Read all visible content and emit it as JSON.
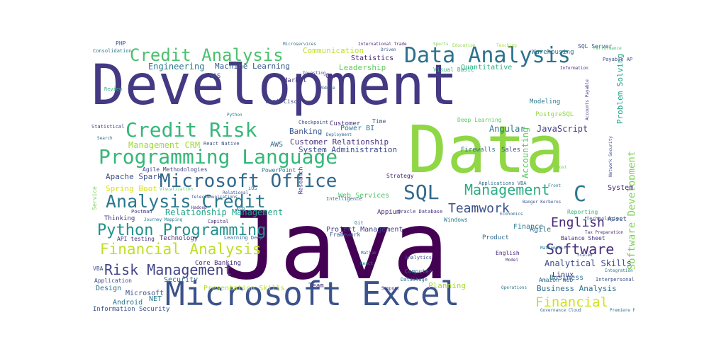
{
  "words": [
    {
      "text": "Development",
      "color": "#443983"
    },
    {
      "text": "Java",
      "color": "#440154"
    },
    {
      "text": "Data",
      "color": "#8fd744"
    },
    {
      "text": "Microsoft Excel",
      "color": "#3b528b"
    },
    {
      "text": "Programming Language",
      "color": "#35b779"
    },
    {
      "text": "Microsoft Office",
      "color": "#31688e"
    },
    {
      "text": "Data Analysis",
      "color": "#2c728e"
    },
    {
      "text": "Credit Risk",
      "color": "#35b779"
    },
    {
      "text": "Credit Analysis",
      "color": "#4ac16d"
    },
    {
      "text": "Analysis Credit",
      "color": "#2a788e"
    },
    {
      "text": "Python Programming",
      "color": "#21918c"
    },
    {
      "text": "Financial Analysis",
      "color": "#bddf26"
    },
    {
      "text": "Risk Management",
      "color": "#414487"
    },
    {
      "text": "SQL",
      "color": "#31688e"
    },
    {
      "text": "C",
      "color": "#2a788e"
    },
    {
      "text": "Management",
      "color": "#27ad81"
    },
    {
      "text": "Teamwork",
      "color": "#3b528b"
    },
    {
      "text": "English",
      "color": "#482878"
    },
    {
      "text": "Software",
      "color": "#472d7b"
    },
    {
      "text": "Financial",
      "color": "#d0e11c"
    },
    {
      "text": "Software Development",
      "color": "#7ad151"
    },
    {
      "text": "Management CRM",
      "color": "#a0da39"
    },
    {
      "text": "Relationship Management",
      "color": "#20a486"
    },
    {
      "text": "Customer Relationship",
      "color": "#46327e"
    },
    {
      "text": "JavaScript",
      "color": "#433e85"
    },
    {
      "text": "Angular",
      "color": "#2c728e"
    },
    {
      "text": "Accounting",
      "color": "#5ec962"
    },
    {
      "text": "Analytical Skills",
      "color": "#3e4989"
    },
    {
      "text": "Business Analysis",
      "color": "#2e6e8e"
    },
    {
      "text": "Engineering",
      "color": "#2a788e"
    },
    {
      "text": "Machine Learning",
      "color": "#365c8d"
    },
    {
      "text": "Communication",
      "color": "#bddf26"
    },
    {
      "text": "Leadership",
      "color": "#63cb5f"
    },
    {
      "text": "Statistics",
      "color": "#482173"
    },
    {
      "text": "Quantitative",
      "color": "#27ad81"
    },
    {
      "text": "Problem Solving",
      "color": "#1fa188"
    },
    {
      "text": "Banking",
      "color": "#39568c"
    },
    {
      "text": "Power BI",
      "color": "#2a788e"
    },
    {
      "text": "System Administration",
      "color": "#3e4989"
    },
    {
      "text": "Apache Spark",
      "color": "#3b528b"
    },
    {
      "text": "Spring Boot",
      "color": "#d8e219"
    },
    {
      "text": "AWS",
      "color": "#31688e"
    },
    {
      "text": "System",
      "color": "#482475"
    },
    {
      "text": "Web Services",
      "color": "#52c569"
    },
    {
      "text": "Project Management",
      "color": "#433e85"
    },
    {
      "text": "Presentation Skills",
      "color": "#b5de2b"
    },
    {
      "text": "Android",
      "color": "#2a788e"
    },
    {
      "text": "Design",
      "color": "#2c728e"
    },
    {
      "text": "Information Security",
      "color": "#3b528b"
    },
    {
      "text": "Security",
      "color": "#31688e"
    },
    {
      "text": "Planning",
      "color": "#a5db36"
    },
    {
      "text": "Core Banking",
      "color": "#472c7a"
    },
    {
      "text": "Technology",
      "color": "#482878"
    },
    {
      "text": "Firewalls",
      "color": "#2e6e8e"
    },
    {
      "text": "Sales",
      "color": "#3b528b"
    },
    {
      "text": "Linux",
      "color": "#46327e"
    },
    {
      "text": "Business",
      "color": "#2d708e"
    },
    {
      "text": "Agile",
      "color": "#31688e"
    },
    {
      "text": "Finance",
      "color": "#2a788e"
    },
    {
      "text": "Asset",
      "color": "#414487"
    },
    {
      "text": "Thinking",
      "color": "#46337f"
    },
    {
      "text": "Microsoft",
      "color": "#3b528b"
    },
    {
      "text": "NET",
      "color": "#2a788e"
    },
    {
      "text": "SAS",
      "color": "#365c8d"
    },
    {
      "text": "Market",
      "color": "#46327e"
    },
    {
      "text": "Core",
      "color": "#482878"
    },
    {
      "text": "Test",
      "color": "#39568c"
    },
    {
      "text": "Cisco",
      "color": "#3e4989"
    },
    {
      "text": "Customer",
      "color": "#46327e"
    },
    {
      "text": "Time",
      "color": "#3b528b"
    },
    {
      "text": "Modeling",
      "color": "#2a788e"
    },
    {
      "text": "Deep Learning",
      "color": "#5ec962"
    },
    {
      "text": "PostgreSQL",
      "color": "#8fd744"
    },
    {
      "text": "Warehousing",
      "color": "#2c728e"
    },
    {
      "text": "SQL Server",
      "color": "#3b528b"
    },
    {
      "text": "Visual Basic",
      "color": "#35b779"
    },
    {
      "text": "Agile Methodologies",
      "color": "#414487"
    },
    {
      "text": "PowerPoint",
      "color": "#2a788e"
    },
    {
      "text": "Strategy",
      "color": "#482878"
    },
    {
      "text": "Research",
      "color": "#443983"
    },
    {
      "text": "Framework",
      "color": "#3b528b"
    },
    {
      "text": "Product",
      "color": "#31688e"
    },
    {
      "text": "English",
      "color": "#482878"
    },
    {
      "text": "Computer",
      "color": "#2c728e"
    },
    {
      "text": "Application",
      "color": "#3e4989"
    },
    {
      "text": "Team",
      "color": "#46327e"
    },
    {
      "text": "Mobile",
      "color": "#39568c"
    },
    {
      "text": "Python",
      "color": "#2a788e"
    },
    {
      "text": "Investing",
      "color": "#404688"
    },
    {
      "text": "PHP",
      "color": "#3b528b"
    },
    {
      "text": "Consolidation",
      "color": "#2a788e"
    },
    {
      "text": "Microservices",
      "color": "#2c728e"
    },
    {
      "text": "International Trade",
      "color": "#482878"
    },
    {
      "text": "Driven",
      "color": "#39568c"
    },
    {
      "text": "Sports",
      "color": "#7ad151"
    },
    {
      "text": "Education",
      "color": "#8fd744"
    },
    {
      "text": "Teaching",
      "color": "#b5de2b"
    },
    {
      "text": "Performance",
      "color": "#4ac16d"
    },
    {
      "text": "Payable AP",
      "color": "#3e4989"
    },
    {
      "text": "Information",
      "color": "#482878"
    },
    {
      "text": "Balance Sheet",
      "color": "#46327e"
    },
    {
      "text": "Amazon Web",
      "color": "#31688e"
    },
    {
      "text": "Interpersonal",
      "color": "#3b528b"
    },
    {
      "text": "Integration",
      "color": "#2a788e"
    },
    {
      "text": "Governance Cloud",
      "color": "#31688e"
    },
    {
      "text": "Premiere Pro",
      "color": "#2c728e"
    },
    {
      "text": "Applications VBA",
      "color": "#2e6e8e"
    },
    {
      "text": "Reporting",
      "color": "#35b779"
    },
    {
      "text": "Technologies",
      "color": "#31688e"
    },
    {
      "text": "Cost",
      "color": "#6ccd5a"
    },
    {
      "text": "Checkpoint",
      "color": "#3b528b"
    },
    {
      "text": "Deployment",
      "color": "#31688e"
    },
    {
      "text": "Appium",
      "color": "#482878"
    },
    {
      "text": "Windows",
      "color": "#2a788e"
    },
    {
      "text": "Analytics",
      "color": "#3e4989"
    },
    {
      "text": "React",
      "color": "#2a788e"
    },
    {
      "text": "Matlab",
      "color": "#31688e"
    },
    {
      "text": "Support",
      "color": "#46327e"
    },
    {
      "text": "DataStage",
      "color": "#2c728e"
    },
    {
      "text": "Model",
      "color": "#482878"
    },
    {
      "text": "Mathematics",
      "color": "#2a788e"
    },
    {
      "text": "Scaled",
      "color": "#3b528b"
    },
    {
      "text": "Intelligence",
      "color": "#31688e"
    },
    {
      "text": "Oracle Database",
      "color": "#46327e"
    },
    {
      "text": "Git",
      "color": "#2a788e"
    },
    {
      "text": "React Native",
      "color": "#3b528b"
    },
    {
      "text": "iOS",
      "color": "#31688e"
    },
    {
      "text": "ASP",
      "color": "#2c728e"
    },
    {
      "text": "Capital",
      "color": "#482878"
    },
    {
      "text": "Learning Deep",
      "color": "#31688e"
    },
    {
      "text": "Journey Mapping",
      "color": "#2a788e"
    },
    {
      "text": "API testing",
      "color": "#46327e"
    },
    {
      "text": "VBA",
      "color": "#3b528b"
    },
    {
      "text": "Review",
      "color": "#35b779"
    },
    {
      "text": "Statistical",
      "color": "#3e4989"
    },
    {
      "text": "Search",
      "color": "#31688e"
    },
    {
      "text": "Preparation Accounts",
      "color": "#2a788e"
    },
    {
      "text": "Service",
      "color": "#7ad151"
    },
    {
      "text": "Postman",
      "color": "#46327e"
    },
    {
      "text": "Hadoop",
      "color": "#482878"
    },
    {
      "text": "Relational",
      "color": "#39568c"
    },
    {
      "text": "Telecommunications",
      "color": "#3b528b"
    },
    {
      "text": "Visualization",
      "color": "#63cb5f"
    },
    {
      "text": "Front",
      "color": "#2a788e"
    },
    {
      "text": "Banger Kerberos",
      "color": "#3b528b"
    },
    {
      "text": "Economics",
      "color": "#31688e"
    },
    {
      "text": "Tax Preparation",
      "color": "#482878"
    },
    {
      "text": "Network Security",
      "color": "#3e4989"
    },
    {
      "text": "Accounts Payable",
      "color": "#46327e"
    },
    {
      "text": "Operations",
      "color": "#2a788e"
    }
  ]
}
